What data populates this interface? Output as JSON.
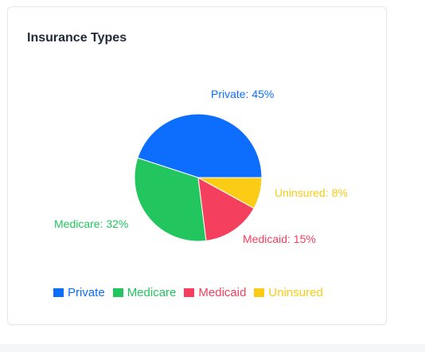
{
  "card": {
    "title": "Insurance Types"
  },
  "chart_data": {
    "type": "pie",
    "slices": [
      {
        "name": "Private",
        "value": 45,
        "color": "#0d6efd",
        "label": "Private: 45%"
      },
      {
        "name": "Medicare",
        "value": 32,
        "color": "#22c55e",
        "label": "Medicare: 32%"
      },
      {
        "name": "Medicaid",
        "value": 15,
        "color": "#f43f5e",
        "label": "Medicaid: 15%"
      },
      {
        "name": "Uninsured",
        "value": 8,
        "color": "#facc15",
        "label": "Uninsured: 8%"
      }
    ],
    "legend_position": "bottom"
  }
}
